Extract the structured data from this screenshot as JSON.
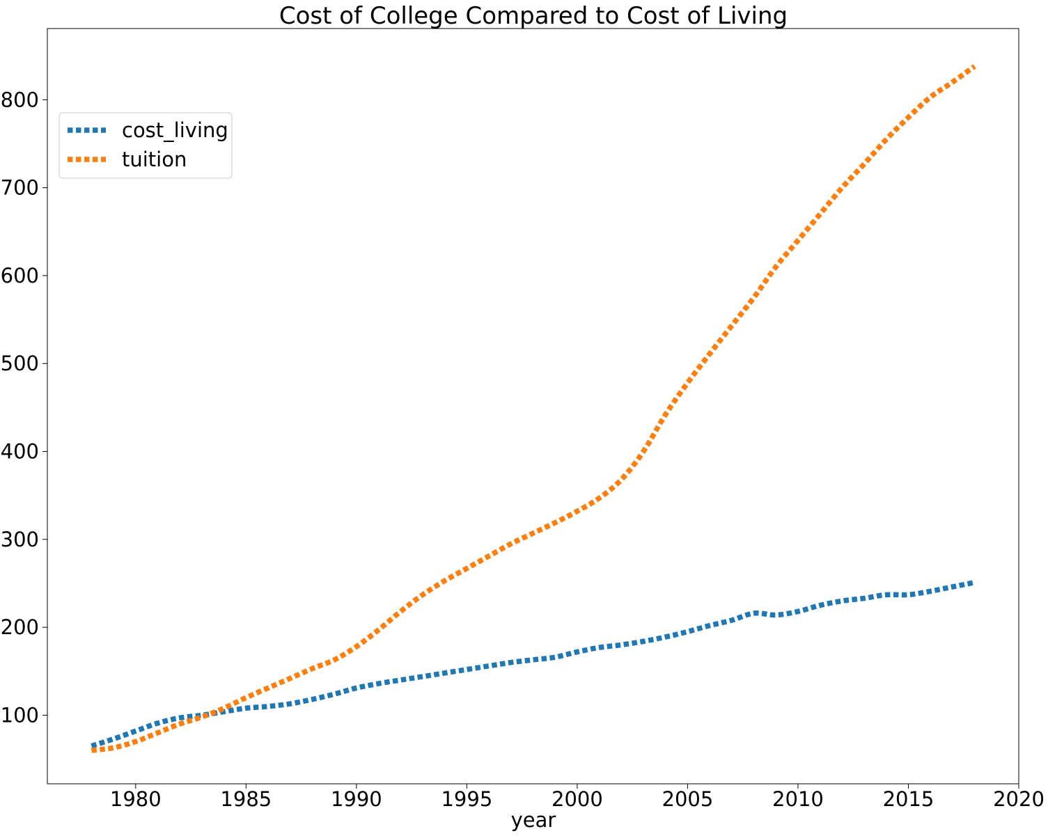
{
  "chart_data": {
    "type": "line",
    "title": "Cost of College Compared to Cost of Living",
    "xlabel": "year",
    "ylabel": "",
    "xlim": [
      1976,
      2020
    ],
    "ylim": [
      22,
      881
    ],
    "xticks": [
      1980,
      1985,
      1990,
      1995,
      2000,
      2005,
      2010,
      2015,
      2020
    ],
    "yticks": [
      100,
      200,
      300,
      400,
      500,
      600,
      700,
      800
    ],
    "legend_position": "upper-left",
    "grid": false,
    "line_style": "dotted",
    "x": [
      1978,
      1979,
      1980,
      1981,
      1982,
      1983,
      1984,
      1985,
      1986,
      1987,
      1988,
      1989,
      1990,
      1991,
      1992,
      1993,
      1994,
      1995,
      1996,
      1997,
      1998,
      1999,
      2000,
      2001,
      2002,
      2003,
      2004,
      2005,
      2006,
      2007,
      2008,
      2009,
      2010,
      2011,
      2012,
      2013,
      2014,
      2015,
      2016,
      2017,
      2018
    ],
    "series": [
      {
        "name": "cost_living",
        "color": "#1f77b4",
        "values": [
          65,
          73,
          82,
          91,
          97,
          100,
          104,
          108,
          110,
          113,
          118,
          124,
          131,
          136,
          140,
          144,
          148,
          152,
          156,
          160,
          163,
          166,
          172,
          177,
          180,
          184,
          189,
          195,
          202,
          208,
          216,
          214,
          218,
          225,
          230,
          233,
          237,
          237,
          241,
          246,
          251
        ]
      },
      {
        "name": "tuition",
        "color": "#ff7f0e",
        "values": [
          60,
          63,
          70,
          80,
          90,
          98,
          108,
          120,
          131,
          142,
          153,
          163,
          178,
          197,
          218,
          237,
          253,
          267,
          281,
          295,
          307,
          319,
          332,
          347,
          368,
          400,
          442,
          478,
          511,
          543,
          575,
          610,
          640,
          670,
          700,
          727,
          755,
          780,
          803,
          820,
          838
        ]
      }
    ]
  }
}
